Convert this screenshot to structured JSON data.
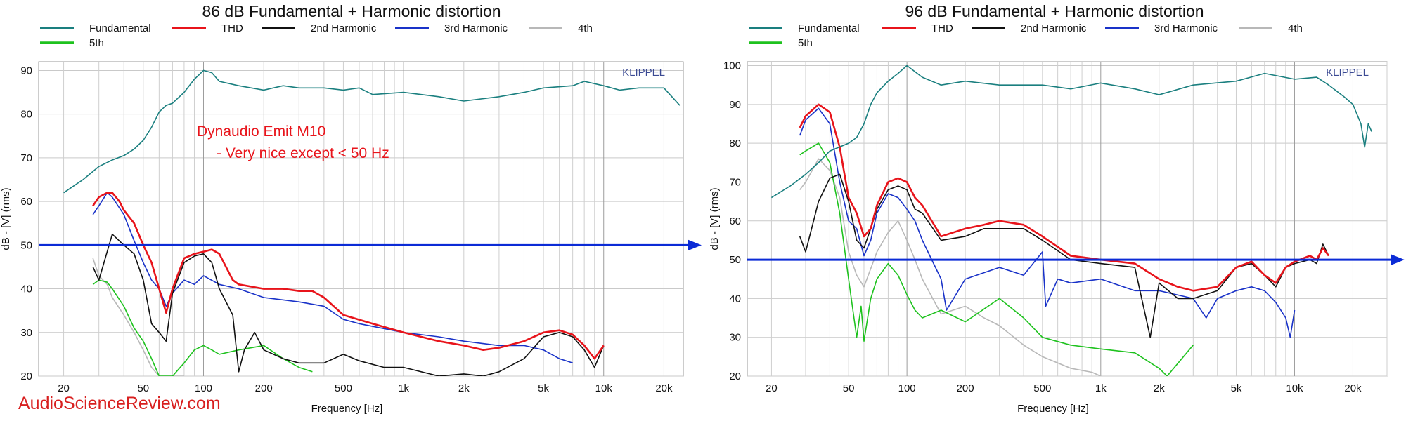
{
  "watermark": "AudioScienceReview.com",
  "chart_data": [
    {
      "type": "line",
      "title": "86 dB Fundamental + Harmonic distortion",
      "xlabel": "Frequency [Hz]",
      "ylabel": "dB - [V] (rms)",
      "xscale": "log",
      "xlim": [
        15,
        25000
      ],
      "ylim": [
        20,
        92
      ],
      "xticks": [
        20,
        50,
        100,
        200,
        500,
        1000,
        2000,
        5000,
        10000,
        20000
      ],
      "xtick_labels": [
        "20",
        "50",
        "100",
        "200",
        "500",
        "1k",
        "2k",
        "5k",
        "10k",
        "20k"
      ],
      "yticks": [
        20,
        30,
        40,
        50,
        60,
        70,
        80,
        90
      ],
      "grid": true,
      "legend_position": "top-left",
      "brand_label": "KLIPPEL",
      "annotations": [
        "Dynaudio Emit M10",
        "- Very nice except < 50 Hz"
      ],
      "reference_line": {
        "y": 50,
        "color": "#0b2bd6"
      },
      "series": [
        {
          "name": "Fundamental",
          "color": "#1a7f7f",
          "x": [
            20,
            25,
            30,
            35,
            40,
            45,
            50,
            55,
            60,
            65,
            70,
            80,
            90,
            100,
            110,
            120,
            150,
            200,
            250,
            300,
            400,
            500,
            600,
            700,
            1000,
            1500,
            2000,
            3000,
            4000,
            5000,
            7000,
            8000,
            10000,
            12000,
            15000,
            20000,
            24000
          ],
          "y": [
            62,
            65,
            68,
            69.5,
            70.5,
            72,
            74,
            77,
            80.5,
            82,
            82.5,
            85,
            88,
            90,
            89.5,
            87.5,
            86.5,
            85.5,
            86.5,
            86,
            86,
            85.5,
            86,
            84.5,
            85,
            84,
            83,
            84,
            85,
            86,
            86.5,
            87.5,
            86.5,
            85.5,
            86,
            86,
            82
          ]
        },
        {
          "name": "THD",
          "color": "#e8141b",
          "x": [
            28,
            30,
            33,
            35,
            38,
            40,
            45,
            50,
            55,
            60,
            65,
            70,
            80,
            90,
            100,
            110,
            120,
            140,
            150,
            200,
            250,
            300,
            350,
            400,
            500,
            700,
            1000,
            1500,
            2000,
            2500,
            3000,
            4000,
            5000,
            6000,
            7000,
            8000,
            9000,
            10000
          ],
          "y": [
            59,
            61,
            62,
            62,
            60,
            58,
            55,
            50,
            46,
            40,
            34.5,
            40,
            47,
            48,
            48.5,
            49,
            48,
            42,
            41,
            40,
            40,
            39.5,
            39.5,
            38,
            34,
            32,
            30,
            28,
            27,
            26,
            26.5,
            28,
            30,
            30.5,
            29.5,
            27,
            24,
            27
          ]
        },
        {
          "name": "2nd Harmonic",
          "color": "#111111",
          "x": [
            28,
            30,
            35,
            40,
            45,
            50,
            55,
            60,
            65,
            70,
            80,
            90,
            100,
            110,
            120,
            140,
            150,
            160,
            180,
            200,
            250,
            300,
            400,
            500,
            600,
            800,
            1000,
            1500,
            2000,
            2500,
            3000,
            4000,
            5000,
            6000,
            7000,
            8000,
            9000,
            10000
          ],
          "y": [
            45,
            42,
            52.5,
            50,
            48,
            42,
            32,
            30,
            28,
            39,
            46,
            47.5,
            48,
            46,
            40,
            34,
            21,
            26,
            30,
            26,
            24,
            23,
            23,
            25,
            23.5,
            22,
            22,
            20,
            20.5,
            20,
            21,
            24,
            29,
            30,
            29,
            26,
            22,
            27
          ]
        },
        {
          "name": "3rd Harmonic",
          "color": "#1932c8",
          "x": [
            28,
            30,
            33,
            35,
            40,
            45,
            50,
            55,
            60,
            65,
            70,
            80,
            90,
            100,
            120,
            150,
            200,
            300,
            400,
            500,
            600,
            1000,
            1500,
            2000,
            3000,
            4000,
            5000,
            6000,
            7000
          ],
          "y": [
            57,
            59,
            62,
            61,
            57,
            51,
            46,
            42,
            40,
            36,
            39,
            42,
            41,
            43,
            41,
            40,
            38,
            37,
            36,
            33,
            32,
            30,
            29,
            28,
            27,
            27,
            26,
            24,
            23
          ]
        },
        {
          "name": "4th",
          "color": "#b8b8b8",
          "x": [
            28,
            30,
            33,
            35,
            40,
            45,
            50,
            55,
            60,
            70,
            80
          ],
          "y": [
            47,
            43,
            41,
            38,
            34,
            30,
            26,
            22,
            20,
            20,
            20
          ]
        },
        {
          "name": "5th",
          "color": "#1ec21e",
          "x": [
            28,
            30,
            33,
            35,
            40,
            45,
            50,
            55,
            60,
            65,
            70,
            80,
            90,
            100,
            110,
            120,
            150,
            200,
            250,
            300,
            350
          ],
          "y": [
            41,
            42,
            41.5,
            40,
            36,
            31,
            28,
            24,
            20,
            20,
            20,
            23,
            26,
            27,
            26,
            25,
            26,
            27,
            24,
            22,
            21
          ]
        }
      ]
    },
    {
      "type": "line",
      "title": "96 dB Fundamental + Harmonic distortion",
      "xlabel": "Frequency [Hz]",
      "ylabel": "dB - [V] (rms)",
      "xscale": "log",
      "xlim": [
        15,
        30000
      ],
      "ylim": [
        20,
        101
      ],
      "xticks": [
        20,
        50,
        100,
        200,
        500,
        1000,
        2000,
        5000,
        10000,
        20000
      ],
      "xtick_labels": [
        "20",
        "50",
        "100",
        "200",
        "500",
        "1k",
        "2k",
        "5k",
        "10k",
        "20k"
      ],
      "yticks": [
        20,
        30,
        40,
        50,
        60,
        70,
        80,
        90,
        100
      ],
      "grid": true,
      "legend_position": "top-left",
      "brand_label": "KLIPPEL",
      "reference_line": {
        "y": 50,
        "color": "#0b2bd6"
      },
      "series": [
        {
          "name": "Fundamental",
          "color": "#1a7f7f",
          "x": [
            20,
            25,
            30,
            35,
            40,
            50,
            55,
            60,
            65,
            70,
            80,
            90,
            100,
            120,
            150,
            200,
            300,
            500,
            700,
            1000,
            1500,
            2000,
            3000,
            5000,
            7000,
            10000,
            13000,
            15000,
            18000,
            20000,
            22000,
            23000,
            24000,
            25000
          ],
          "y": [
            66,
            69,
            72,
            75,
            78,
            80,
            81.5,
            85,
            90,
            93,
            96,
            98,
            100,
            97,
            95,
            96,
            95,
            95,
            94,
            95.5,
            94,
            92.5,
            95,
            96,
            98,
            96.5,
            97,
            95,
            92,
            90,
            85,
            79,
            85,
            83
          ]
        },
        {
          "name": "THD",
          "color": "#e8141b",
          "x": [
            28,
            30,
            35,
            40,
            45,
            50,
            55,
            60,
            65,
            70,
            80,
            90,
            100,
            110,
            120,
            150,
            200,
            250,
            300,
            400,
            500,
            700,
            1000,
            1500,
            2000,
            2500,
            3000,
            4000,
            5000,
            6000,
            7000,
            8000,
            9000,
            10000,
            12000,
            13000,
            14000,
            15000
          ],
          "y": [
            84,
            87,
            90,
            88,
            79,
            66,
            62,
            56,
            58,
            64,
            70,
            71,
            70,
            66,
            64,
            56,
            58,
            59,
            60,
            59,
            56,
            51,
            50,
            49,
            45,
            43,
            42,
            43,
            48,
            49.5,
            46,
            44,
            48,
            49.5,
            51,
            50,
            53,
            51
          ]
        },
        {
          "name": "2nd Harmonic",
          "color": "#111111",
          "x": [
            28,
            30,
            35,
            40,
            45,
            50,
            55,
            60,
            65,
            70,
            80,
            90,
            100,
            110,
            120,
            150,
            200,
            250,
            300,
            400,
            500,
            700,
            1000,
            1500,
            1800,
            2000,
            2500,
            3000,
            4000,
            5000,
            6000,
            7000,
            8000,
            9000,
            10000,
            12000,
            13000,
            14000,
            15000
          ],
          "y": [
            56,
            52,
            65,
            71,
            72,
            65,
            55,
            53,
            58,
            63,
            68,
            69,
            68,
            63,
            62,
            55,
            56,
            58,
            58,
            58,
            55,
            50,
            49,
            48,
            30,
            44,
            40,
            40,
            42,
            48,
            49,
            46,
            43,
            48,
            49,
            50,
            49,
            54,
            51
          ]
        },
        {
          "name": "3rd Harmonic",
          "color": "#1932c8",
          "x": [
            28,
            30,
            35,
            40,
            45,
            50,
            55,
            60,
            65,
            70,
            80,
            90,
            100,
            110,
            120,
            150,
            160,
            200,
            300,
            400,
            500,
            520,
            600,
            700,
            1000,
            1500,
            2000,
            3000,
            3500,
            4000,
            5000,
            6000,
            7000,
            8000,
            9000,
            9500,
            10000
          ],
          "y": [
            82,
            86,
            89,
            85,
            70,
            60,
            58,
            51,
            55,
            62,
            67,
            66,
            63,
            60,
            55,
            45,
            37,
            45,
            48,
            46,
            52,
            38,
            45,
            44,
            45,
            42,
            42,
            40,
            35,
            40,
            42,
            43,
            42,
            39,
            35,
            30,
            37
          ]
        },
        {
          "name": "4th",
          "color": "#b8b8b8",
          "x": [
            28,
            30,
            35,
            40,
            45,
            50,
            55,
            60,
            70,
            80,
            90,
            100,
            110,
            120,
            150,
            200,
            250,
            300,
            400,
            500,
            700,
            900,
            1000
          ],
          "y": [
            68,
            70,
            76,
            73,
            66,
            52,
            46,
            43,
            52,
            57,
            60,
            55,
            50,
            45,
            36,
            38,
            35,
            33,
            28,
            25,
            22,
            21,
            20
          ]
        },
        {
          "name": "5th",
          "color": "#1ec21e",
          "x": [
            28,
            30,
            35,
            40,
            45,
            50,
            55,
            58,
            60,
            65,
            70,
            80,
            90,
            100,
            110,
            120,
            150,
            200,
            300,
            400,
            500,
            700,
            1000,
            1500,
            2000,
            2200,
            3000
          ],
          "y": [
            77,
            78,
            80,
            75,
            62,
            45,
            30,
            38,
            29,
            40,
            45,
            49,
            46,
            41,
            37,
            35,
            37,
            34,
            40,
            35,
            30,
            28,
            27,
            26,
            22,
            20,
            28
          ]
        }
      ]
    }
  ]
}
